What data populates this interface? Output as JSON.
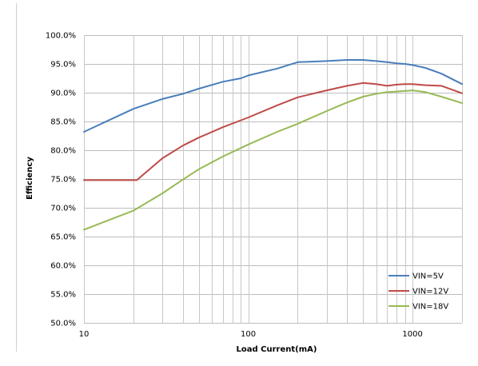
{
  "chart_data": {
    "type": "line",
    "title": "",
    "xlabel": "Load Current(mA)",
    "ylabel": "Efficiency",
    "x_scale": "log",
    "xlim": [
      10,
      2000
    ],
    "ylim": [
      50.0,
      100.0
    ],
    "x_ticks": [
      "10",
      "100",
      "1000"
    ],
    "y_ticks": [
      "50.0%",
      "55.0%",
      "60.0%",
      "65.0%",
      "70.0%",
      "75.0%",
      "80.0%",
      "85.0%",
      "90.0%",
      "95.0%",
      "100.0%"
    ],
    "grid": "horizontal major and vertical log-minor lines",
    "legend_position": "bottom-right",
    "series": [
      {
        "name": "VIN=5V",
        "color": "#4a7ebb",
        "x": [
          10,
          20,
          30,
          40,
          50,
          70,
          90,
          100,
          150,
          200,
          300,
          400,
          500,
          600,
          700,
          800,
          900,
          1000,
          1200,
          1500,
          2000
        ],
        "y": [
          83.2,
          87.2,
          88.9,
          89.8,
          90.7,
          91.9,
          92.5,
          93.0,
          94.2,
          95.3,
          95.5,
          95.7,
          95.7,
          95.5,
          95.3,
          95.1,
          95.0,
          94.8,
          94.3,
          93.3,
          91.5
        ]
      },
      {
        "name": "VIN=12V",
        "color": "#be4b48",
        "x": [
          10,
          20,
          21,
          30,
          40,
          50,
          70,
          100,
          150,
          200,
          300,
          400,
          500,
          600,
          700,
          800,
          900,
          1000,
          1200,
          1500,
          2000
        ],
        "y": [
          74.8,
          74.8,
          74.8,
          78.6,
          80.8,
          82.2,
          84.0,
          85.7,
          87.8,
          89.2,
          90.4,
          91.2,
          91.7,
          91.5,
          91.2,
          91.4,
          91.5,
          91.5,
          91.3,
          91.2,
          89.9
        ]
      },
      {
        "name": "VIN=18V",
        "color": "#98b954",
        "x": [
          10,
          20,
          30,
          40,
          50,
          70,
          100,
          150,
          200,
          300,
          400,
          500,
          600,
          700,
          800,
          900,
          1000,
          1200,
          1500,
          2000
        ],
        "y": [
          66.2,
          69.5,
          72.5,
          74.9,
          76.7,
          78.9,
          81.0,
          83.2,
          84.6,
          86.8,
          88.3,
          89.3,
          89.8,
          90.1,
          90.2,
          90.3,
          90.4,
          90.1,
          89.3,
          88.2
        ]
      }
    ]
  }
}
